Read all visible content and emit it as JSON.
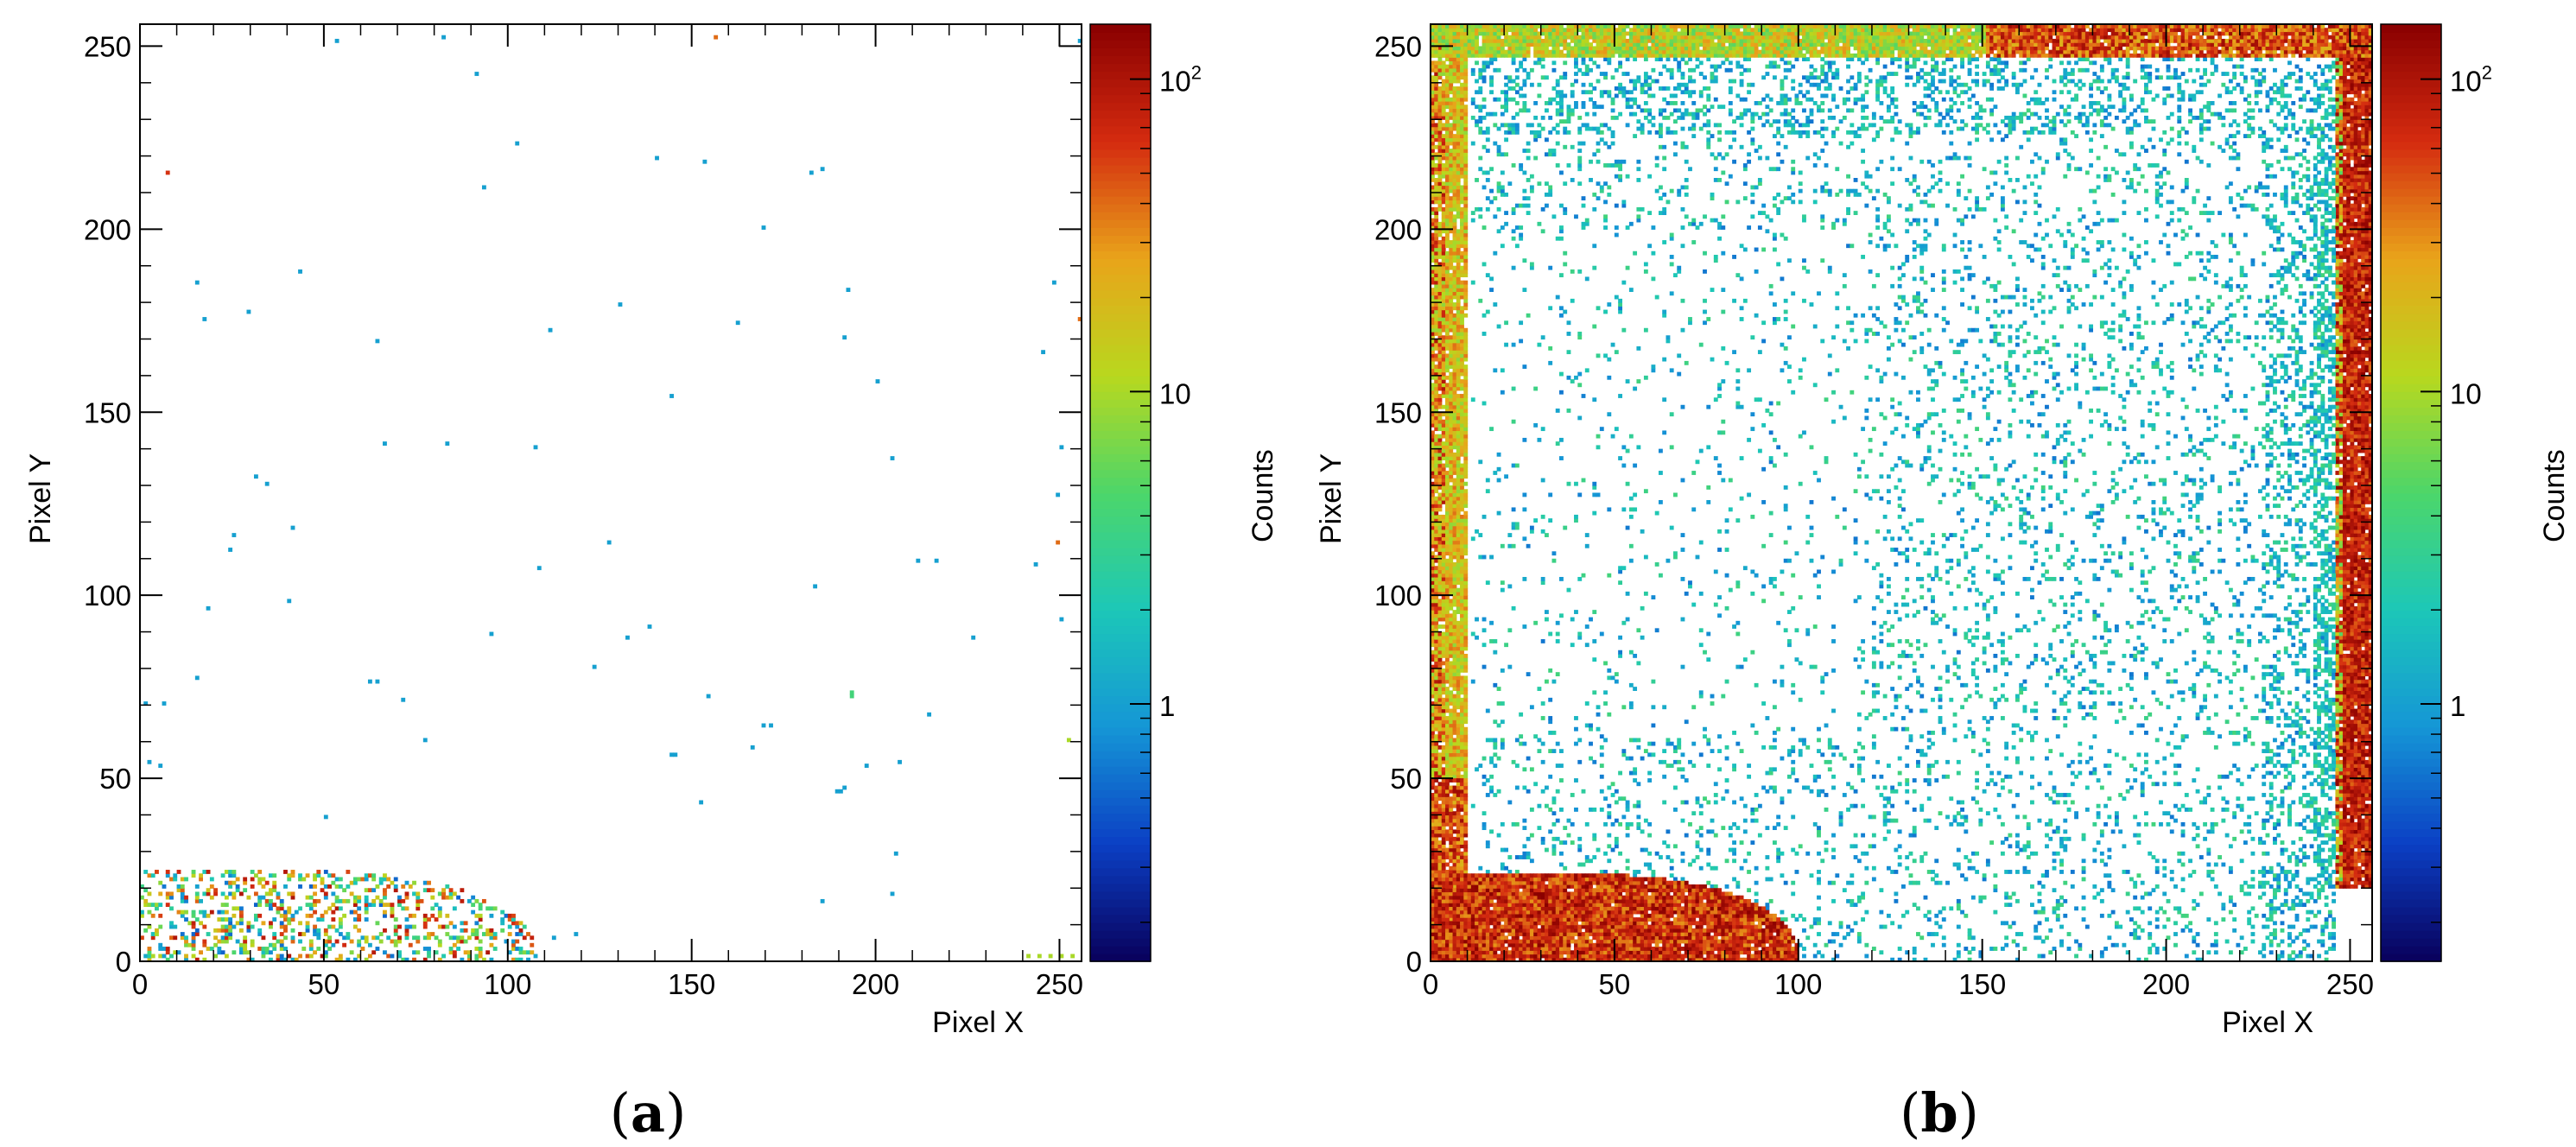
{
  "chart_data": [
    {
      "type": "heatmap",
      "panel_label": "a",
      "xlabel": "Pixel X",
      "ylabel": "Pixel Y",
      "zlabel": "Counts",
      "xlim": [
        0,
        256
      ],
      "ylim": [
        0,
        256
      ],
      "zlim": [
        0.15,
        150
      ],
      "zscale": "log",
      "x_ticks": [
        0,
        50,
        100,
        150,
        200,
        250
      ],
      "y_ticks": [
        0,
        50,
        100,
        150,
        200,
        250
      ],
      "z_ticks": [
        {
          "value": 1,
          "label": "1"
        },
        {
          "value": 10,
          "label": "10"
        },
        {
          "value": 100,
          "label": "10",
          "sup": "2"
        }
      ],
      "colormap": [
        "#09005a",
        "#0b3fc4",
        "#1596d6",
        "#1cc7b8",
        "#4cd66a",
        "#b8d81e",
        "#e9a41a",
        "#d42b10",
        "#8a0000"
      ],
      "background": "#ffffff",
      "features": {
        "scattered_points": [
          [
            53,
            251,
            1
          ],
          [
            82,
            252,
            1
          ],
          [
            91,
            242,
            1
          ],
          [
            7,
            215,
            60
          ],
          [
            102,
            223,
            1
          ],
          [
            93,
            211,
            1
          ],
          [
            140,
            219,
            1
          ],
          [
            153,
            218,
            1
          ],
          [
            182,
            215,
            1
          ],
          [
            185,
            216,
            1
          ],
          [
            169,
            200,
            1
          ],
          [
            15,
            185,
            1
          ],
          [
            43,
            188,
            1
          ],
          [
            192,
            183,
            1
          ],
          [
            248,
            185,
            1
          ],
          [
            17,
            175,
            1
          ],
          [
            29,
            177,
            1
          ],
          [
            130,
            179,
            1
          ],
          [
            162,
            174,
            1
          ],
          [
            111,
            172,
            1
          ],
          [
            64,
            169,
            1
          ],
          [
            191,
            170,
            1
          ],
          [
            245,
            166,
            1
          ],
          [
            200,
            158,
            1
          ],
          [
            144,
            154,
            1
          ],
          [
            66,
            141,
            1
          ],
          [
            83,
            141,
            1
          ],
          [
            107,
            140,
            1
          ],
          [
            204,
            137,
            1
          ],
          [
            31,
            132,
            1
          ],
          [
            34,
            130,
            1
          ],
          [
            249,
            127,
            1
          ],
          [
            250,
            140,
            1
          ],
          [
            25,
            116,
            1
          ],
          [
            24,
            112,
            1
          ],
          [
            41,
            118,
            1
          ],
          [
            127,
            114,
            1
          ],
          [
            249,
            114,
            40
          ],
          [
            108,
            107,
            1
          ],
          [
            211,
            109,
            1
          ],
          [
            216,
            109,
            1
          ],
          [
            243,
            108,
            1
          ],
          [
            18,
            96,
            1
          ],
          [
            40,
            98,
            1
          ],
          [
            95,
            89,
            1
          ],
          [
            132,
            88,
            1
          ],
          [
            138,
            91,
            1
          ],
          [
            183,
            102,
            1
          ],
          [
            226,
            88,
            1
          ],
          [
            250,
            93,
            1
          ],
          [
            15,
            77,
            1
          ],
          [
            62,
            76,
            1
          ],
          [
            64,
            76,
            1
          ],
          [
            71,
            71,
            1
          ],
          [
            77,
            60,
            1
          ],
          [
            123,
            80,
            1
          ],
          [
            154,
            72,
            1
          ],
          [
            169,
            64,
            1
          ],
          [
            171,
            64,
            1
          ],
          [
            193,
            72,
            4
          ],
          [
            193,
            73,
            4
          ],
          [
            214,
            67,
            1
          ],
          [
            144,
            56,
            1
          ],
          [
            145,
            56,
            1
          ],
          [
            166,
            58,
            1
          ],
          [
            197,
            53,
            1
          ],
          [
            206,
            54,
            1
          ],
          [
            189,
            46,
            1
          ],
          [
            190,
            46,
            1
          ],
          [
            191,
            47,
            1
          ],
          [
            152,
            43,
            1
          ],
          [
            50,
            39,
            1
          ],
          [
            205,
            29,
            1
          ],
          [
            204,
            18,
            1
          ],
          [
            185,
            16,
            1
          ],
          [
            1,
            70,
            1
          ],
          [
            6,
            70,
            1
          ],
          [
            252,
            60,
            10
          ],
          [
            2,
            54,
            1
          ],
          [
            5,
            53,
            1
          ],
          [
            241,
            1,
            10
          ],
          [
            244,
            1,
            10
          ],
          [
            247,
            1,
            10
          ],
          [
            250,
            1,
            10
          ],
          [
            253,
            1,
            10
          ],
          [
            156,
            252,
            40
          ],
          [
            255,
            251,
            1
          ],
          [
            255,
            175,
            40
          ],
          [
            118,
            7,
            1
          ],
          [
            112,
            6,
            1
          ]
        ],
        "corner_region": {
          "x_max": 108,
          "y_max": 25,
          "density": 0.3,
          "value_range": [
            0.5,
            100
          ]
        }
      }
    },
    {
      "type": "heatmap",
      "panel_label": "b",
      "xlabel": "Pixel X",
      "ylabel": "Pixel Y",
      "zlabel": "Counts",
      "xlim": [
        0,
        256
      ],
      "ylim": [
        0,
        256
      ],
      "zlim": [
        0.15,
        150
      ],
      "zscale": "log",
      "x_ticks": [
        0,
        50,
        100,
        150,
        200,
        250
      ],
      "y_ticks": [
        0,
        50,
        100,
        150,
        200,
        250
      ],
      "z_ticks": [
        {
          "value": 1,
          "label": "1"
        },
        {
          "value": 10,
          "label": "10"
        },
        {
          "value": 100,
          "label": "10",
          "sup": "2"
        }
      ],
      "colormap": [
        "#09005a",
        "#0b3fc4",
        "#1596d6",
        "#1cc7b8",
        "#4cd66a",
        "#b8d81e",
        "#e9a41a",
        "#d42b10",
        "#8a0000"
      ],
      "background": "#ffffff",
      "features": {
        "left_edge_band": {
          "x_max": 10,
          "y_range": [
            50,
            256
          ],
          "value_range": [
            8,
            40
          ]
        },
        "left_edge_low": {
          "x_max": 10,
          "y_range": [
            0,
            50
          ],
          "value_range": [
            20,
            120
          ]
        },
        "right_edge_band": {
          "x_min": 246,
          "y_range": [
            20,
            256
          ],
          "value_range": [
            40,
            150
          ]
        },
        "top_edge_band": {
          "y_min": 247,
          "x_range": [
            0,
            256
          ],
          "value_range": [
            5,
            120
          ]
        },
        "bottom_corner_region": {
          "x_max": 100,
          "y_max": 24,
          "value_range": [
            30,
            150
          ]
        },
        "interior_noise": {
          "density": 0.12,
          "value_range": [
            0.6,
            4
          ]
        }
      }
    }
  ]
}
